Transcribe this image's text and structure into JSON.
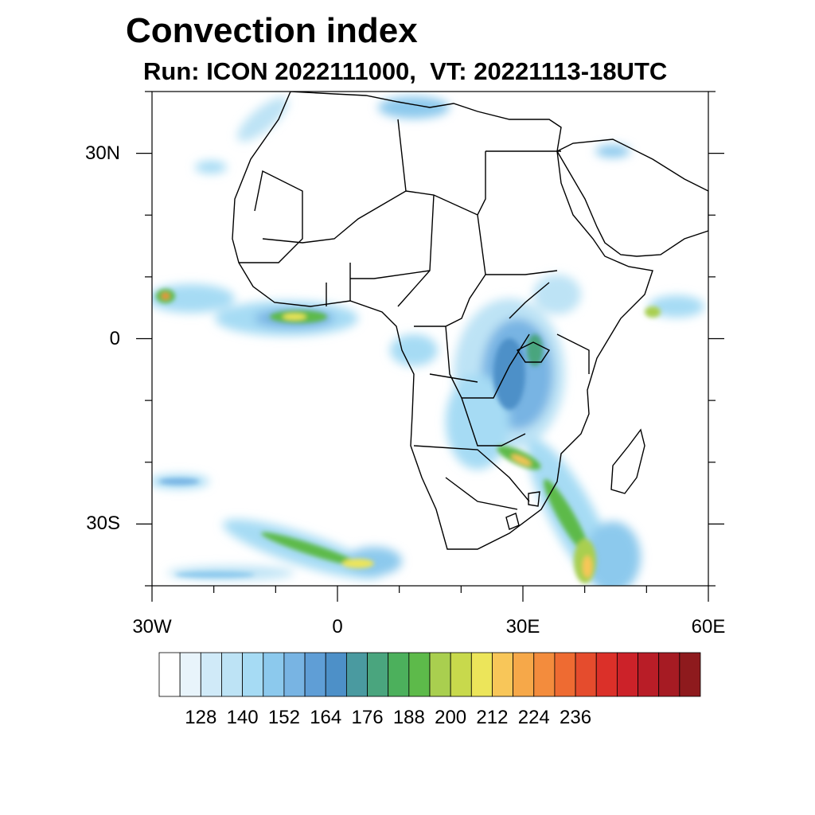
{
  "title": "Convection index",
  "subtitle": "Run: ICON 2022111000,  VT: 20221113-18UTC",
  "map": {
    "lon_range": [
      -30,
      60
    ],
    "lat_range": [
      -40,
      40
    ],
    "x_ticks": [
      {
        "lon": -30,
        "label": "30W"
      },
      {
        "lon": 0,
        "label": "0"
      },
      {
        "lon": 30,
        "label": "30E"
      },
      {
        "lon": 60,
        "label": "60E"
      }
    ],
    "y_ticks": [
      {
        "lat": 30,
        "label": "30N"
      },
      {
        "lat": 0,
        "label": "0"
      },
      {
        "lat": -30,
        "label": "30S"
      }
    ]
  },
  "colorbar": {
    "labels": [
      "128",
      "140",
      "152",
      "164",
      "176",
      "188",
      "200",
      "212",
      "224",
      "236"
    ],
    "colors": [
      "#ffffff",
      "#e8f4fb",
      "#d0eaf8",
      "#bde3f5",
      "#a6dbf4",
      "#8cc9ed",
      "#78b4e3",
      "#5f9ed6",
      "#4d90c8",
      "#4a9aa0",
      "#4aa57e",
      "#4cb05c",
      "#5dba4a",
      "#a9cf4f",
      "#c8d94c",
      "#ece55a",
      "#f8c659",
      "#f6a849",
      "#f38c3d",
      "#ee6b32",
      "#e54c2d",
      "#db3029",
      "#cc2229",
      "#b91d27",
      "#a61b23",
      "#8e1a1d"
    ]
  }
}
